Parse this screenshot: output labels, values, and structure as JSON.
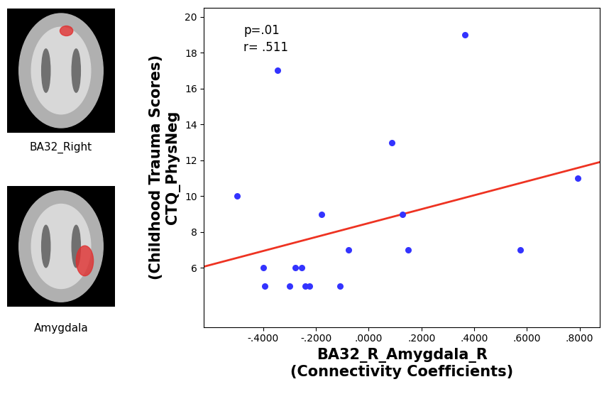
{
  "chart_data": {
    "type": "scatter",
    "xlabel": "BA32_R_Amygdala_R\n(Connectivity Coefficients)",
    "ylabel": "(Childhood Trauma Scores)\nCTQ_PhysNeg",
    "annotations": [
      "p=.01",
      "r= .511"
    ],
    "series": [
      {
        "type": "scatter",
        "color": "#3333ff",
        "marker": "circle",
        "x": [
          -0.5,
          -0.4,
          -0.395,
          -0.345,
          -0.3,
          -0.28,
          -0.255,
          -0.24,
          -0.225,
          -0.18,
          -0.11,
          -0.077,
          0.087,
          0.128,
          0.149,
          0.365,
          0.576,
          0.794
        ],
        "values": [
          10,
          6,
          5,
          17,
          5,
          6,
          6,
          5,
          5,
          9,
          5,
          7,
          13,
          9,
          7,
          19,
          7,
          11
        ]
      },
      {
        "type": "line",
        "color": "#ee3322",
        "line_style": "solid",
        "x": [
          -0.625,
          0.877
        ],
        "values": [
          6.07,
          11.9
        ]
      }
    ],
    "xlim": [
      -0.625,
      0.877
    ],
    "xticks": [
      {
        "value": -0.4,
        "label": "-.4000"
      },
      {
        "value": -0.2,
        "label": "-.2000"
      },
      {
        "value": 0.0,
        "label": ".0000"
      },
      {
        "value": 0.2,
        "label": ".2000"
      },
      {
        "value": 0.4,
        "label": ".4000"
      },
      {
        "value": 0.6,
        "label": ".6000"
      },
      {
        "value": 0.8,
        "label": ".8000"
      }
    ],
    "ylim": [
      2.7,
      20.5
    ],
    "yticks": [
      6,
      8,
      10,
      12,
      14,
      16,
      18,
      20
    ],
    "grid": false
  },
  "image_captions": [
    "BA32_Right",
    "Amygdala"
  ]
}
